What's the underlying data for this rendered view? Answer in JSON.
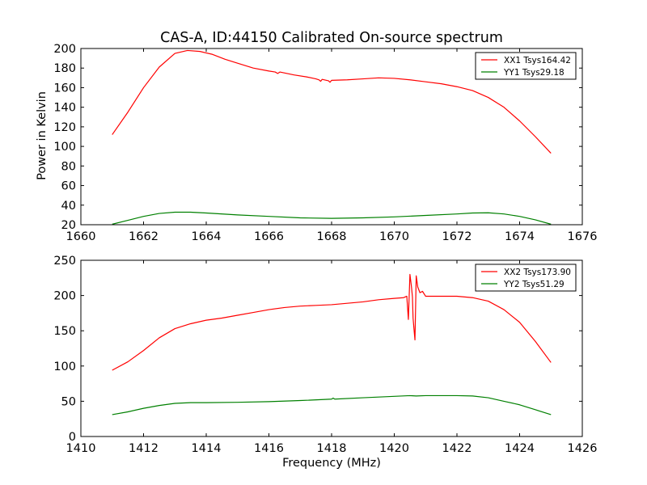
{
  "figure": {
    "title": "CAS-A, ID:44150 Calibrated On-source spectrum",
    "xlabel_bottom": "Frequency (MHz)",
    "ylabel_top": "Power in Kelvin"
  },
  "chart_data": [
    {
      "type": "line",
      "title": "CAS-A, ID:44150 Calibrated On-source spectrum",
      "xlabel": "",
      "ylabel": "Power in Kelvin",
      "xlim": [
        1660,
        1676
      ],
      "ylim": [
        20,
        200
      ],
      "xticks": [
        1660,
        1662,
        1664,
        1666,
        1668,
        1670,
        1672,
        1674,
        1676
      ],
      "yticks": [
        20,
        40,
        60,
        80,
        100,
        120,
        140,
        160,
        180,
        200
      ],
      "grid": false,
      "legend_position": "top-right",
      "series": [
        {
          "name": "XX1 Tsys164.42",
          "color": "#ff0000",
          "points": [
            [
              1661.0,
              112
            ],
            [
              1661.5,
              135
            ],
            [
              1662.0,
              160
            ],
            [
              1662.5,
              181
            ],
            [
              1663.0,
              195
            ],
            [
              1663.4,
              198
            ],
            [
              1663.8,
              197
            ],
            [
              1664.2,
              194
            ],
            [
              1664.6,
              189
            ],
            [
              1665.0,
              185
            ],
            [
              1665.5,
              180
            ],
            [
              1666.0,
              177
            ],
            [
              1666.2,
              176
            ],
            [
              1666.28,
              174.5
            ],
            [
              1666.35,
              176
            ],
            [
              1666.8,
              173
            ],
            [
              1667.2,
              171
            ],
            [
              1667.5,
              169
            ],
            [
              1667.6,
              168
            ],
            [
              1667.65,
              166.5
            ],
            [
              1667.7,
              168.5
            ],
            [
              1667.9,
              167
            ],
            [
              1667.95,
              165.5
            ],
            [
              1668.0,
              167.5
            ],
            [
              1668.5,
              168
            ],
            [
              1669.0,
              169
            ],
            [
              1669.5,
              170
            ],
            [
              1670.0,
              169.5
            ],
            [
              1670.5,
              168
            ],
            [
              1671.0,
              166
            ],
            [
              1671.5,
              164
            ],
            [
              1672.0,
              161
            ],
            [
              1672.5,
              157
            ],
            [
              1673.0,
              150
            ],
            [
              1673.5,
              140
            ],
            [
              1674.0,
              126
            ],
            [
              1674.5,
              110
            ],
            [
              1675.0,
              93
            ]
          ]
        },
        {
          "name": "YY1 Tsys29.18",
          "color": "#008000",
          "points": [
            [
              1661.0,
              20.5
            ],
            [
              1661.5,
              24.5
            ],
            [
              1662.0,
              28.5
            ],
            [
              1662.5,
              31.5
            ],
            [
              1663.0,
              32.8
            ],
            [
              1663.5,
              32.8
            ],
            [
              1664.0,
              32
            ],
            [
              1665.0,
              30
            ],
            [
              1666.0,
              28.5
            ],
            [
              1667.0,
              27
            ],
            [
              1668.0,
              26.5
            ],
            [
              1669.0,
              27
            ],
            [
              1670.0,
              28
            ],
            [
              1671.0,
              29.5
            ],
            [
              1672.0,
              31
            ],
            [
              1672.5,
              32
            ],
            [
              1673.0,
              32.2
            ],
            [
              1673.5,
              31
            ],
            [
              1674.0,
              28.5
            ],
            [
              1674.5,
              25
            ],
            [
              1675.0,
              20.5
            ]
          ]
        }
      ]
    },
    {
      "type": "line",
      "title": "",
      "xlabel": "Frequency (MHz)",
      "ylabel": "",
      "xlim": [
        1410,
        1426
      ],
      "ylim": [
        0,
        250
      ],
      "xticks": [
        1410,
        1412,
        1414,
        1416,
        1418,
        1420,
        1422,
        1424,
        1426
      ],
      "yticks": [
        0,
        50,
        100,
        150,
        200,
        250
      ],
      "grid": false,
      "legend_position": "top-right",
      "series": [
        {
          "name": "XX2 Tsys173.90",
          "color": "#ff0000",
          "points": [
            [
              1411.0,
              94
            ],
            [
              1411.5,
              106
            ],
            [
              1412.0,
              122
            ],
            [
              1412.5,
              140
            ],
            [
              1413.0,
              153
            ],
            [
              1413.5,
              160
            ],
            [
              1414.0,
              165
            ],
            [
              1414.5,
              168
            ],
            [
              1415.0,
              172
            ],
            [
              1415.5,
              176
            ],
            [
              1416.0,
              180
            ],
            [
              1416.5,
              183
            ],
            [
              1417.0,
              185
            ],
            [
              1417.5,
              186
            ],
            [
              1418.0,
              187
            ],
            [
              1418.5,
              189
            ],
            [
              1419.0,
              191
            ],
            [
              1419.5,
              194
            ],
            [
              1420.0,
              196
            ],
            [
              1420.3,
              197
            ],
            [
              1420.4,
              199
            ],
            [
              1420.45,
              166
            ],
            [
              1420.5,
              230
            ],
            [
              1420.55,
              212
            ],
            [
              1420.58,
              198
            ],
            [
              1420.6,
              168
            ],
            [
              1420.63,
              152
            ],
            [
              1420.66,
              137
            ],
            [
              1420.7,
              228
            ],
            [
              1420.75,
              212
            ],
            [
              1420.82,
              204
            ],
            [
              1420.9,
              206
            ],
            [
              1421.0,
              199
            ],
            [
              1421.5,
              199
            ],
            [
              1422.0,
              199
            ],
            [
              1422.5,
              197
            ],
            [
              1423.0,
              192
            ],
            [
              1423.5,
              180
            ],
            [
              1424.0,
              162
            ],
            [
              1424.5,
              135
            ],
            [
              1425.0,
              105
            ]
          ]
        },
        {
          "name": "YY2 Tsys51.29",
          "color": "#008000",
          "points": [
            [
              1411.0,
              31
            ],
            [
              1411.5,
              35
            ],
            [
              1412.0,
              40
            ],
            [
              1412.5,
              44
            ],
            [
              1413.0,
              47
            ],
            [
              1413.5,
              48
            ],
            [
              1414.0,
              48
            ],
            [
              1415.0,
              48.5
            ],
            [
              1416.0,
              49.5
            ],
            [
              1417.0,
              51
            ],
            [
              1418.0,
              53
            ],
            [
              1418.05,
              54.5
            ],
            [
              1418.1,
              53
            ],
            [
              1419.0,
              55
            ],
            [
              1420.0,
              57
            ],
            [
              1420.5,
              58
            ],
            [
              1420.7,
              57.5
            ],
            [
              1421.0,
              58
            ],
            [
              1422.0,
              58
            ],
            [
              1422.5,
              57.5
            ],
            [
              1423.0,
              55
            ],
            [
              1423.5,
              50
            ],
            [
              1424.0,
              45
            ],
            [
              1424.5,
              38
            ],
            [
              1425.0,
              31
            ]
          ]
        }
      ]
    }
  ]
}
